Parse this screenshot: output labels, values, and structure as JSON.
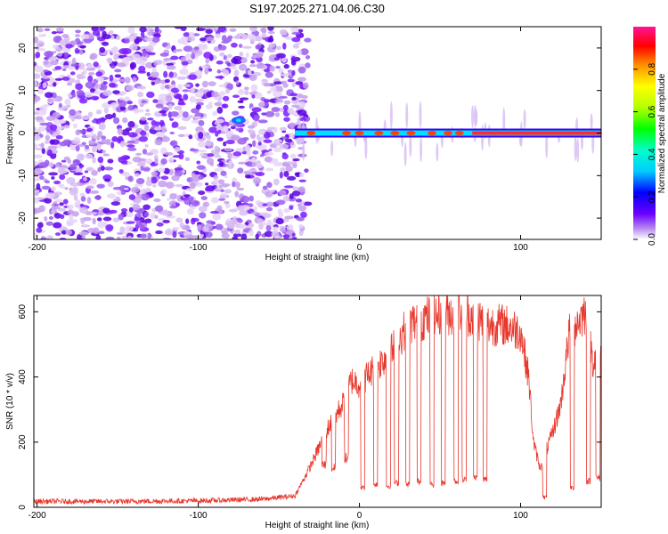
{
  "title": "S197.2025.271.04.06.C30",
  "chart_data": [
    {
      "type": "heatmap",
      "title": "S197.2025.271.04.06.C30",
      "xlabel": "Height of straight line (km)",
      "ylabel": "Frequency (Hz)",
      "xlim": [
        -202,
        150
      ],
      "ylim": [
        -25,
        25
      ],
      "xticks": [
        -200,
        -100,
        0,
        100
      ],
      "yticks": [
        -20,
        -10,
        0,
        10,
        20
      ],
      "colorbar": {
        "label": "Normalized spectral amplitude",
        "range": [
          0,
          1
        ],
        "ticks": [
          0.0,
          0.2,
          0.4,
          0.6,
          0.8
        ]
      },
      "description_series": [
        {
          "name": "noise_region",
          "x_range": [
            -202,
            -40
          ],
          "frequency_range": [
            -25,
            25
          ]
        },
        {
          "name": "carrier_line",
          "x_range": [
            -40,
            150
          ],
          "frequency": 0
        }
      ]
    },
    {
      "type": "line",
      "xlabel": "Height of straight line (km)",
      "ylabel": "SNR (10 * v/v)",
      "xlim": [
        -202,
        150
      ],
      "ylim": [
        0,
        650
      ],
      "xticks": [
        -200,
        -100,
        0,
        100
      ],
      "yticks": [
        0,
        200,
        400,
        600
      ],
      "color": "#e8372c",
      "series": [
        {
          "name": "SNR envelope",
          "x": [
            -202,
            -150,
            -100,
            -60,
            -40,
            -30,
            -20,
            -10,
            -5,
            0,
            10,
            20,
            30,
            40,
            50,
            60,
            70,
            80,
            90,
            100,
            105,
            108,
            112,
            120,
            125,
            130,
            140,
            145,
            150
          ],
          "values": [
            18,
            18,
            20,
            25,
            35,
            130,
            240,
            320,
            390,
            380,
            430,
            480,
            560,
            580,
            590,
            600,
            590,
            560,
            560,
            540,
            400,
            200,
            120,
            230,
            320,
            530,
            600,
            450,
            480
          ]
        },
        {
          "name": "SNR dropouts",
          "x": [
            -22,
            -16,
            -8,
            2,
            10,
            18,
            23,
            30,
            37,
            45,
            52,
            60,
            65,
            72,
            78,
            115,
            132,
            142,
            148
          ],
          "values": [
            130,
            120,
            150,
            60,
            70,
            65,
            75,
            70,
            80,
            70,
            75,
            80,
            85,
            90,
            85,
            30,
            60,
            80,
            90
          ]
        }
      ]
    }
  ]
}
